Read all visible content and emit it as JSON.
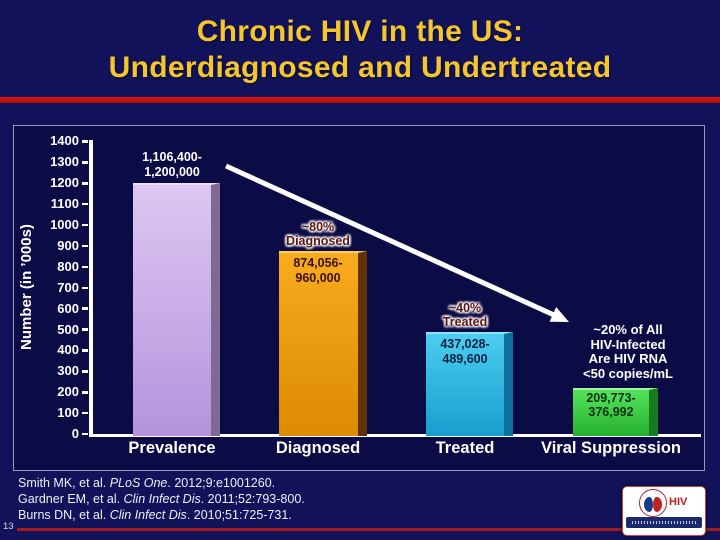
{
  "slide": {
    "title_line1": "Chronic HIV in the US:",
    "title_line2": "Underdiagnosed and Undertreated",
    "slide_number": "13"
  },
  "chart_data": {
    "type": "bar",
    "title": "Chronic HIV in the US: Underdiagnosed and Undertreated",
    "xlabel": "",
    "ylabel": "Number (in ’000s)",
    "ylim": [
      0,
      1400
    ],
    "ytick_step": 100,
    "yticks": [
      1400,
      1300,
      1200,
      1100,
      1000,
      900,
      800,
      700,
      600,
      500,
      400,
      300,
      200,
      100,
      0
    ],
    "grid": "off",
    "legend": "none",
    "units": "thousands of persons",
    "categories": [
      "Prevalence",
      "Diagnosed",
      "Treated",
      "Viral Suppression"
    ],
    "values": [
      1200,
      874,
      486,
      222
    ],
    "range_values_thousands": [
      [
        1106.4,
        1200
      ],
      [
        874.056,
        960
      ],
      [
        437.028,
        489.6
      ],
      [
        209.773,
        376.992
      ]
    ],
    "value_range_labels": [
      [
        "1,106,400-",
        "1,200,000"
      ],
      [
        "874,056-",
        "960,000"
      ],
      [
        "437,028-",
        "489,600"
      ],
      [
        "209,773-",
        "376,992"
      ]
    ],
    "annotations": [
      {
        "lines": [
          "~80%",
          "Diagnosed"
        ]
      },
      {
        "lines": [
          "~40%",
          "Treated"
        ]
      },
      {
        "lines": [
          "~20% of All",
          "HIV-Infected",
          "Are HIV RNA",
          "<50 copies/mL"
        ]
      }
    ],
    "bar_styles": [
      {
        "top": "#ddc7f2",
        "bottom": "#b493dc",
        "shade": "#7e6a92",
        "edge": "#eee0fa",
        "label_color": "#ffffff"
      },
      {
        "top": "#f7ab1e",
        "bottom": "#dd8b00",
        "shade": "#5f3305",
        "edge": "#fccb5e",
        "label_color": "#3a120a"
      },
      {
        "top": "#4ccdf0",
        "bottom": "#189ecd",
        "shade": "#0e6f9c",
        "edge": "#8ae4fa",
        "label_color": "#0a2040"
      },
      {
        "top": "#55e35b",
        "bottom": "#25b02f",
        "shade": "#157a20",
        "edge": "#9af59d",
        "label_color": "#0d2e10"
      }
    ],
    "accent_colors": {
      "title_text": "#f3c52f",
      "divider_red": "#c41212",
      "axis_white": "#ffffff",
      "background_navy": "#0b0b45"
    }
  },
  "citations": [
    {
      "pre": "Smith MK, et al. ",
      "journal": "PLoS One",
      "post": ". 2012;9:e1001260."
    },
    {
      "pre": "Gardner EM, et al. ",
      "journal": "Clin Infect Dis",
      "post": ". 2011;52:793-800."
    },
    {
      "pre": "Burns DN, et al. ",
      "journal": "Clin Infect Dis",
      "post": ". 2010;51:725-731."
    }
  ],
  "logo": {
    "text": "HIV"
  }
}
